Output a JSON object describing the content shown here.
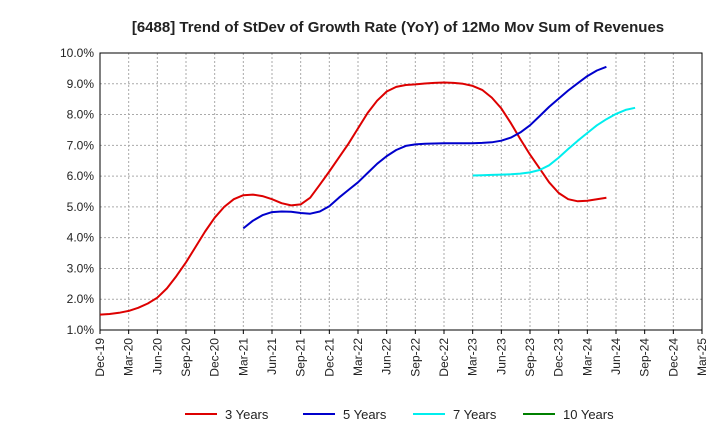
{
  "chart_data": {
    "type": "line",
    "title": "[6488]  Trend of StDev of Growth Rate (YoY) of 12Mo Mov Sum of Revenues",
    "xlabel": "",
    "ylabel": "",
    "ylim": [
      1.0,
      10.0
    ],
    "yticks": [
      "1.0%",
      "2.0%",
      "3.0%",
      "4.0%",
      "5.0%",
      "6.0%",
      "7.0%",
      "8.0%",
      "9.0%",
      "10.0%"
    ],
    "xticks": [
      "Dec-19",
      "Mar-20",
      "Jun-20",
      "Sep-20",
      "Dec-20",
      "Mar-21",
      "Jun-21",
      "Sep-21",
      "Dec-21",
      "Mar-22",
      "Jun-22",
      "Sep-22",
      "Dec-22",
      "Mar-23",
      "Jun-23",
      "Sep-23",
      "Dec-23",
      "Mar-24",
      "Jun-24",
      "Sep-24",
      "Dec-24",
      "Mar-25"
    ],
    "x_start": "Dec-19",
    "x_step_months": 1,
    "grid": true,
    "legend_position": "bottom",
    "series": [
      {
        "name": "3 Years",
        "color": "#dd0000",
        "start_index": 0,
        "values": [
          1.5,
          1.52,
          1.56,
          1.62,
          1.72,
          1.86,
          2.05,
          2.35,
          2.75,
          3.2,
          3.7,
          4.2,
          4.65,
          5.0,
          5.25,
          5.38,
          5.4,
          5.35,
          5.25,
          5.12,
          5.05,
          5.08,
          5.3,
          5.72,
          6.15,
          6.6,
          7.05,
          7.55,
          8.05,
          8.45,
          8.75,
          8.9,
          8.96,
          8.98,
          9.01,
          9.03,
          9.04,
          9.03,
          9.0,
          8.93,
          8.8,
          8.55,
          8.2,
          7.72,
          7.2,
          6.7,
          6.25,
          5.8,
          5.45,
          5.25,
          5.18,
          5.2,
          5.25,
          5.3
        ]
      },
      {
        "name": "5 Years",
        "color": "#0000cc",
        "start_index": 15,
        "values": [
          4.3,
          4.55,
          4.73,
          4.83,
          4.85,
          4.84,
          4.8,
          4.78,
          4.85,
          5.02,
          5.3,
          5.55,
          5.8,
          6.1,
          6.4,
          6.65,
          6.85,
          6.98,
          7.03,
          7.05,
          7.06,
          7.07,
          7.07,
          7.07,
          7.07,
          7.08,
          7.1,
          7.15,
          7.25,
          7.42,
          7.65,
          7.95,
          8.25,
          8.52,
          8.78,
          9.02,
          9.25,
          9.43,
          9.55
        ]
      },
      {
        "name": "7 Years",
        "color": "#00eeee",
        "start_index": 39,
        "values": [
          6.02,
          6.03,
          6.04,
          6.05,
          6.06,
          6.08,
          6.12,
          6.2,
          6.35,
          6.6,
          6.88,
          7.15,
          7.4,
          7.65,
          7.85,
          8.02,
          8.15,
          8.22
        ]
      },
      {
        "name": "10 Years",
        "color": "#008000",
        "start_index": 0,
        "values": []
      }
    ]
  }
}
